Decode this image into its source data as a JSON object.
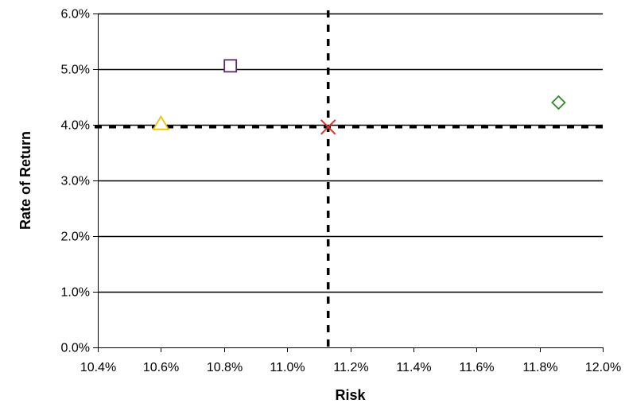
{
  "chart_data": {
    "type": "scatter",
    "title": "",
    "xlabel": "Risk",
    "ylabel": "Rate of Return",
    "xlim": [
      0.104,
      0.12
    ],
    "ylim": [
      0.0,
      0.06
    ],
    "x_ticks": [
      0.104,
      0.106,
      0.108,
      0.11,
      0.112,
      0.114,
      0.116,
      0.118,
      0.12
    ],
    "x_tick_labels": [
      "10.4%",
      "10.6%",
      "10.8%",
      "11.0%",
      "11.2%",
      "11.4%",
      "11.6%",
      "11.8%",
      "12.0%"
    ],
    "y_ticks": [
      0.0,
      0.01,
      0.02,
      0.03,
      0.04,
      0.05,
      0.06
    ],
    "y_tick_labels": [
      "0.0%",
      "1.0%",
      "2.0%",
      "3.0%",
      "4.0%",
      "5.0%",
      "6.0%"
    ],
    "grid": "horizontal",
    "legend": "none",
    "points": [
      {
        "x": 0.1082,
        "y": 0.0506,
        "marker": "square",
        "color": "#5b2c6f"
      },
      {
        "x": 0.106,
        "y": 0.0402,
        "marker": "triangle",
        "color": "#e6c200"
      },
      {
        "x": 0.1186,
        "y": 0.044,
        "marker": "diamond",
        "color": "#2e8b22"
      },
      {
        "x": 0.1113,
        "y": 0.0396,
        "marker": "x",
        "color": "#d03a2a"
      }
    ],
    "reference_lines": [
      {
        "orientation": "vertical",
        "x": 0.1113,
        "style": "dashed",
        "color": "#000000"
      },
      {
        "orientation": "horizontal",
        "y": 0.0396,
        "style": "dashed",
        "color": "#000000"
      }
    ]
  }
}
